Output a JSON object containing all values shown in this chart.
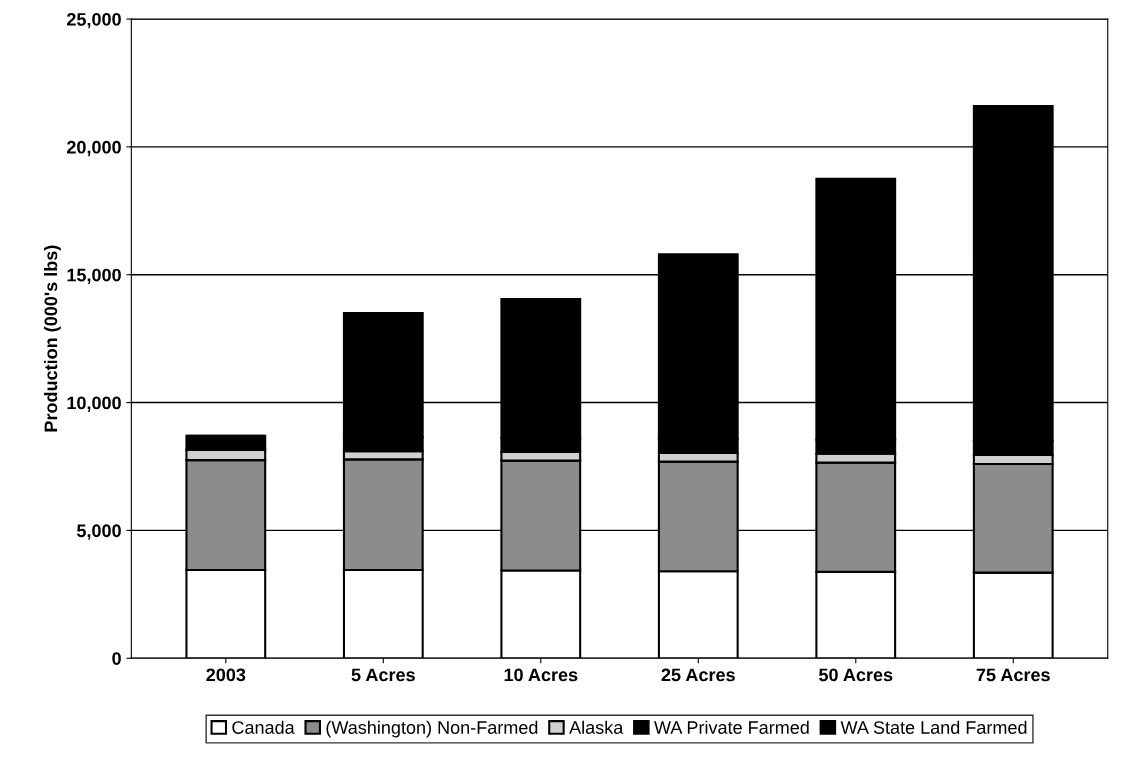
{
  "chart_data": {
    "type": "bar",
    "stacked": true,
    "ylabel": "Production (000's lbs)",
    "categories": [
      "2003",
      "5 Acres",
      "10 Acres",
      "25 Acres",
      "50 Acres",
      "75 Acres"
    ],
    "series": [
      {
        "name": "Canada",
        "color": "#ffffff",
        "values": [
          3450,
          3450,
          3430,
          3400,
          3380,
          3350
        ]
      },
      {
        "name": "(Washington) Non-Farmed",
        "color": "#8c8c8c",
        "values": [
          4300,
          4330,
          4300,
          4290,
          4270,
          4250
        ]
      },
      {
        "name": "Alaska",
        "color": "#d0d0d0",
        "values": [
          400,
          320,
          340,
          340,
          350,
          350
        ]
      },
      {
        "name": "WA Private Farmed",
        "color": "#000000",
        "values": [
          550,
          550,
          550,
          550,
          550,
          550
        ]
      },
      {
        "name": "WA State Land Farmed",
        "color": "#000000",
        "values": [
          0,
          4850,
          5430,
          7220,
          10200,
          13100
        ]
      }
    ],
    "ylim": [
      0,
      25000
    ],
    "yticks": [
      {
        "value": 0,
        "label": "0"
      },
      {
        "value": 5000,
        "label": "5,000"
      },
      {
        "value": 10000,
        "label": "10,000"
      },
      {
        "value": 15000,
        "label": "15,000"
      },
      {
        "value": 20000,
        "label": "20,000"
      },
      {
        "value": 25000,
        "label": "25,000"
      }
    ],
    "grid": "y",
    "legend": "bottom"
  }
}
